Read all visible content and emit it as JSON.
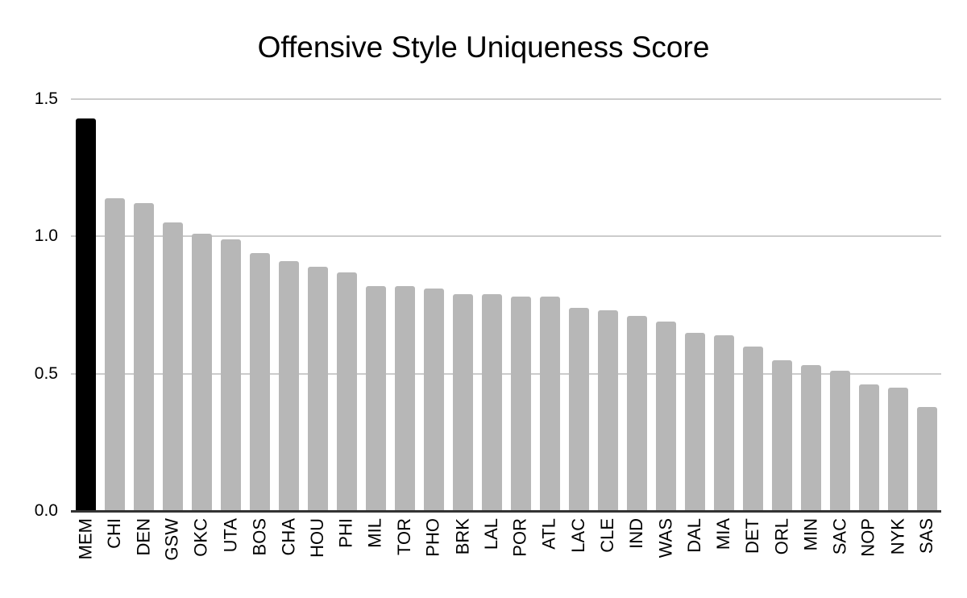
{
  "page": {
    "background_color": "#ffffff"
  },
  "chart_data": {
    "type": "bar",
    "title": "Offensive Style Uniqueness Score",
    "xlabel": "",
    "ylabel": "",
    "ylim": [
      0,
      1.5
    ],
    "yticks": [
      0.0,
      0.5,
      1.0,
      1.5
    ],
    "ytick_labels": [
      "0.0",
      "0.5",
      "1.0",
      "1.5"
    ],
    "grid": "horizontal",
    "legend": "none",
    "categories": [
      "MEM",
      "CHI",
      "DEN",
      "GSW",
      "OKC",
      "UTA",
      "BOS",
      "CHA",
      "HOU",
      "PHI",
      "MIL",
      "TOR",
      "PHO",
      "BRK",
      "LAL",
      "POR",
      "ATL",
      "LAC",
      "CLE",
      "IND",
      "WAS",
      "DAL",
      "MIA",
      "DET",
      "ORL",
      "MIN",
      "SAC",
      "NOP",
      "NYK",
      "SAS"
    ],
    "values": [
      1.43,
      1.14,
      1.12,
      1.05,
      1.01,
      0.99,
      0.94,
      0.91,
      0.89,
      0.87,
      0.82,
      0.82,
      0.81,
      0.79,
      0.79,
      0.78,
      0.78,
      0.74,
      0.73,
      0.71,
      0.69,
      0.65,
      0.64,
      0.6,
      0.55,
      0.53,
      0.51,
      0.46,
      0.45,
      0.38
    ],
    "colors": {
      "default_bar": "#b7b7b7",
      "highlight_bar": "#000000",
      "highlight_category": "MEM",
      "gridline": "#cccccc",
      "axis_line": "#333333",
      "text": "#000000"
    }
  }
}
